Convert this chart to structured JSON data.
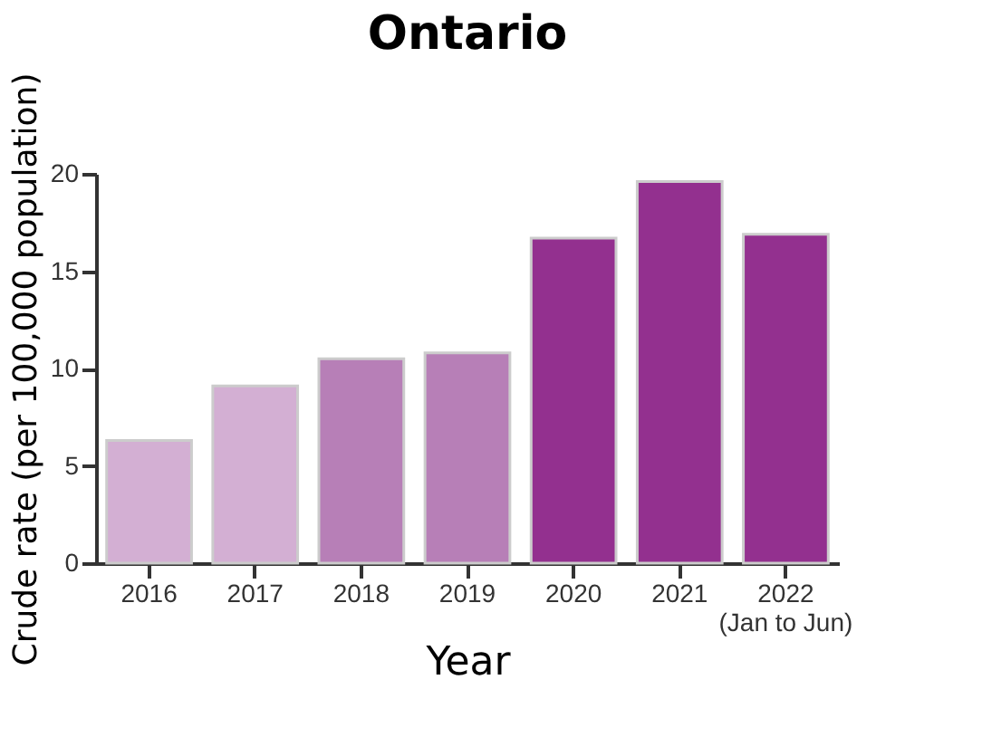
{
  "chart_data": {
    "type": "bar",
    "title": "Ontario",
    "xlabel": "Year",
    "ylabel": "Crude rate (per 100,000 population)",
    "categories": [
      "2016",
      "2017",
      "2018",
      "2019",
      "2020",
      "2021",
      "2022\n(Jan to Jun)"
    ],
    "values": [
      6.3,
      9.1,
      10.5,
      10.8,
      16.7,
      19.6,
      16.9
    ],
    "colors": [
      "#d3afd3",
      "#d3afd3",
      "#b77fb7",
      "#b77fb7",
      "#93308f",
      "#93308f",
      "#93308f"
    ],
    "ylim": [
      0,
      20
    ],
    "yticks": [
      0,
      5,
      10,
      15,
      20
    ],
    "grid": false
  }
}
